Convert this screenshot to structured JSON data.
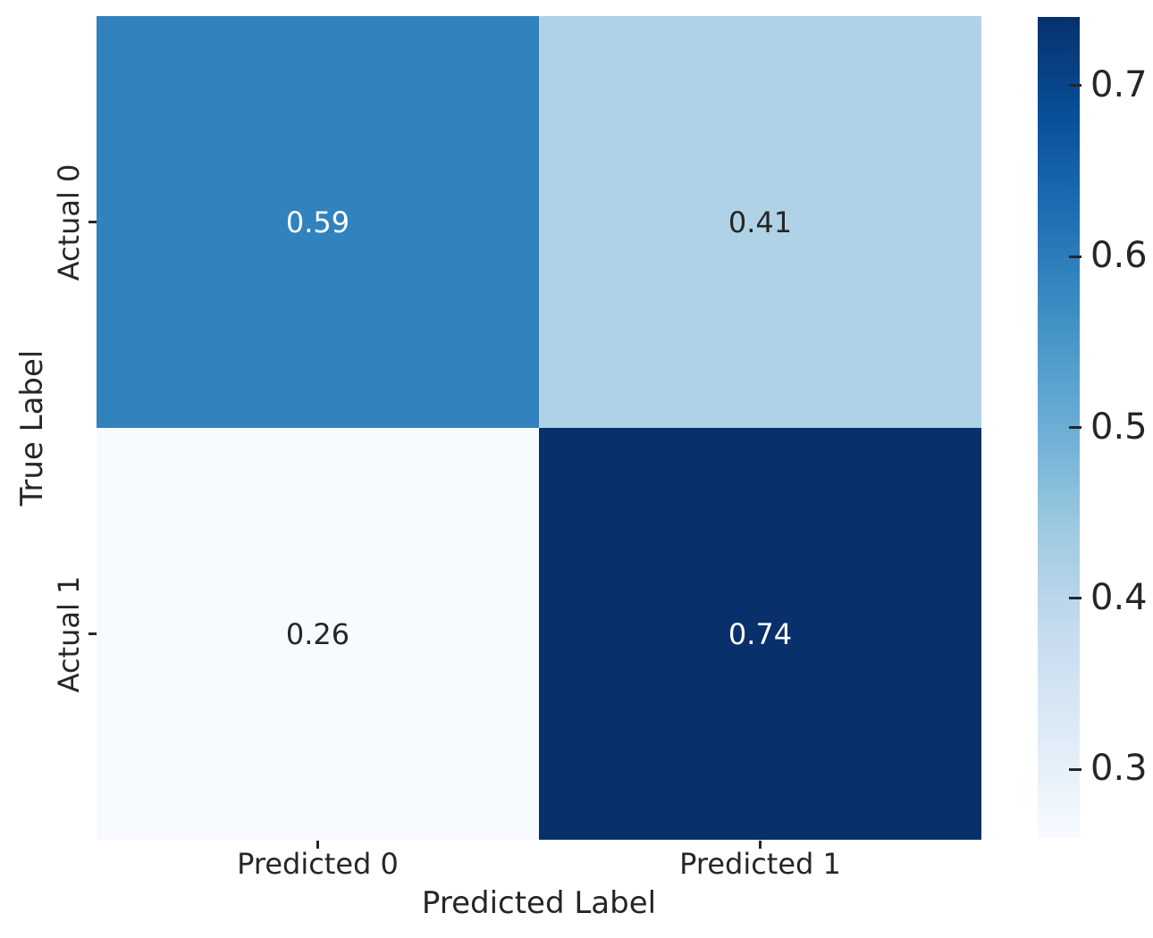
{
  "figure": {
    "background": "#ffffff",
    "text_color": "#262626"
  },
  "chart_data": {
    "type": "heatmap",
    "title": "",
    "xlabel": "Predicted Label",
    "ylabel": "True Label",
    "x_categories": [
      "Predicted 0",
      "Predicted 1"
    ],
    "y_categories": [
      "Actual 0",
      "Actual 1"
    ],
    "values": [
      [
        0.59,
        0.41
      ],
      [
        0.26,
        0.74
      ]
    ],
    "cells": [
      {
        "row": "Actual 0",
        "col": "Predicted 0",
        "label": "0.59",
        "bg": "#3182bd",
        "fg": "#ffffff"
      },
      {
        "row": "Actual 0",
        "col": "Predicted 1",
        "label": "0.41",
        "bg": "#b0d2e6",
        "fg": "#262626"
      },
      {
        "row": "Actual 1",
        "col": "Predicted 0",
        "label": "0.26",
        "bg": "#f7fbff",
        "fg": "#262626"
      },
      {
        "row": "Actual 1",
        "col": "Predicted 1",
        "label": "0.74",
        "bg": "#08306b",
        "fg": "#ffffff"
      }
    ],
    "colormap": "Blues",
    "grid": false,
    "colorbar": {
      "position": "right",
      "vmin": 0.26,
      "vmax": 0.74,
      "ticks": [
        0.7,
        0.6,
        0.5,
        0.4,
        0.3
      ],
      "tick_labels": [
        "0.7",
        "0.6",
        "0.5",
        "0.4",
        "0.3"
      ],
      "gradient_stops": [
        "#f7fbff",
        "#deebf7",
        "#c6dbef",
        "#9ecae1",
        "#6baed6",
        "#4292c6",
        "#2171b5",
        "#08519c",
        "#08306b"
      ]
    }
  }
}
